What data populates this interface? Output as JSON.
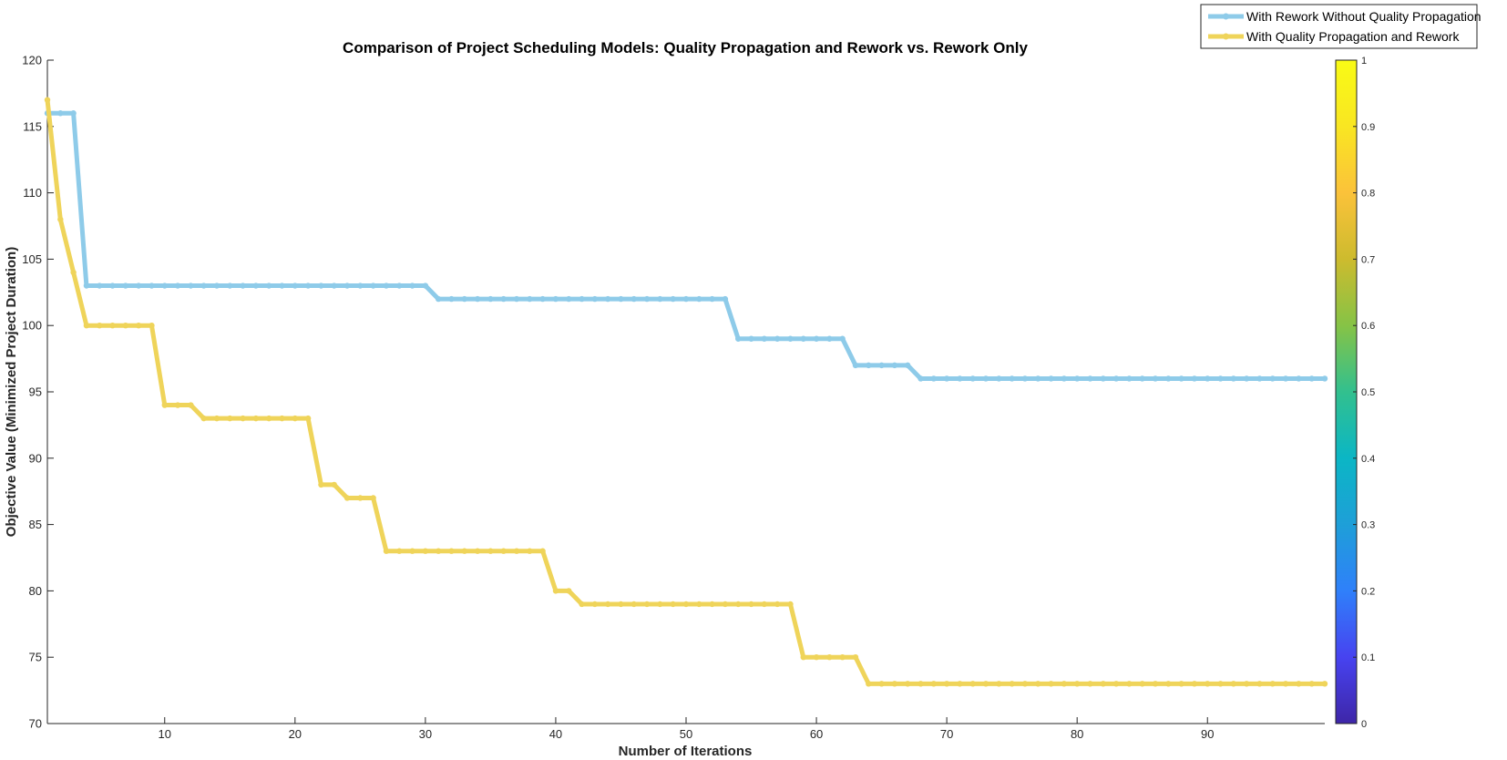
{
  "chart_data": {
    "type": "line",
    "title": "Comparison of Project Scheduling Models: Quality Propagation and Rework vs. Rework Only",
    "xlabel": "Number of Iterations",
    "ylabel": "Objective Value (Minimized Project Duration)",
    "xlim": [
      1,
      99
    ],
    "ylim": [
      70,
      120
    ],
    "xticks": [
      10,
      20,
      30,
      40,
      50,
      60,
      70,
      80,
      90
    ],
    "yticks": [
      70,
      75,
      80,
      85,
      90,
      95,
      100,
      105,
      110,
      115,
      120
    ],
    "legend_position": "top-right (outside axes)",
    "grid": false,
    "series": [
      {
        "name": "With Rework Without Quality Propagation",
        "color": "#8ecbe9",
        "segments": [
          {
            "from": 1,
            "to": 3,
            "value": 116
          },
          {
            "from": 4,
            "to": 30,
            "value": 103
          },
          {
            "from": 31,
            "to": 53,
            "value": 102
          },
          {
            "from": 54,
            "to": 62,
            "value": 99
          },
          {
            "from": 63,
            "to": 67,
            "value": 97
          },
          {
            "from": 68,
            "to": 99,
            "value": 96
          }
        ]
      },
      {
        "name": "With Quality Propagation and Rework",
        "color": "#efd45a",
        "segments": [
          {
            "from": 1,
            "to": 1,
            "value": 117
          },
          {
            "from": 2,
            "to": 2,
            "value": 108
          },
          {
            "from": 3,
            "to": 3,
            "value": 104
          },
          {
            "from": 4,
            "to": 9,
            "value": 100
          },
          {
            "from": 10,
            "to": 12,
            "value": 94
          },
          {
            "from": 13,
            "to": 21,
            "value": 93
          },
          {
            "from": 22,
            "to": 23,
            "value": 88
          },
          {
            "from": 24,
            "to": 26,
            "value": 87
          },
          {
            "from": 27,
            "to": 39,
            "value": 83
          },
          {
            "from": 40,
            "to": 41,
            "value": 80
          },
          {
            "from": 42,
            "to": 58,
            "value": 79
          },
          {
            "from": 59,
            "to": 63,
            "value": 75
          },
          {
            "from": 64,
            "to": 99,
            "value": 73
          }
        ]
      }
    ],
    "colorbar": {
      "ticks": [
        "0",
        "0.1",
        "0.2",
        "0.3",
        "0.4",
        "0.5",
        "0.6",
        "0.7",
        "0.8",
        "0.9",
        "1"
      ],
      "range": [
        0,
        1
      ],
      "colormap": [
        "#3e26a8",
        "#4743f0",
        "#2f80fa",
        "#1e9fd8",
        "#0bb6c5",
        "#32c08e",
        "#86c346",
        "#cdbb2e",
        "#fbc23a",
        "#f9e622",
        "#f9fb15"
      ]
    }
  }
}
